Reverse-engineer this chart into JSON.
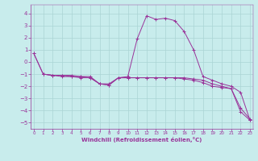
{
  "xlabel": "Windchill (Refroidissement éolien,°C)",
  "bg_color": "#c8ecec",
  "grid_color": "#aad4d4",
  "line_color": "#993399",
  "xlim": [
    -0.3,
    23.3
  ],
  "ylim": [
    -5.5,
    4.7
  ],
  "xticks": [
    0,
    1,
    2,
    3,
    4,
    5,
    6,
    7,
    8,
    9,
    10,
    11,
    12,
    13,
    14,
    15,
    16,
    17,
    18,
    19,
    20,
    21,
    22,
    23
  ],
  "yticks": [
    -5,
    -4,
    -3,
    -2,
    -1,
    0,
    1,
    2,
    3,
    4
  ],
  "lines": [
    {
      "x": [
        0,
        1,
        2,
        3,
        4,
        5,
        6,
        7,
        8,
        9,
        10,
        11,
        12,
        13,
        14,
        15,
        16,
        17,
        18,
        19,
        20,
        21,
        22,
        23
      ],
      "y": [
        0.7,
        -1.0,
        -1.1,
        -1.2,
        -1.2,
        -1.3,
        -1.3,
        -1.8,
        -1.8,
        -1.3,
        -1.3,
        -1.3,
        -1.3,
        -1.3,
        -1.3,
        -1.3,
        -1.3,
        -1.4,
        -1.5,
        -1.8,
        -2.0,
        -2.2,
        -3.8,
        -4.7
      ]
    },
    {
      "x": [
        0,
        1,
        2,
        3,
        4,
        5,
        6,
        7,
        8,
        9,
        10,
        11,
        12,
        13,
        14,
        15,
        16,
        17,
        18,
        19,
        20,
        21,
        22,
        23
      ],
      "y": [
        0.7,
        -1.0,
        -1.1,
        -1.1,
        -1.2,
        -1.2,
        -1.3,
        -1.8,
        -1.9,
        -1.3,
        -1.2,
        1.9,
        3.8,
        3.5,
        3.6,
        3.4,
        2.5,
        1.0,
        -1.2,
        -1.5,
        -1.8,
        -2.0,
        -2.5,
        -4.8
      ]
    },
    {
      "x": [
        1,
        2,
        3,
        4,
        5,
        6,
        7,
        8,
        9,
        10,
        11,
        12,
        13,
        14,
        15,
        16,
        17,
        18,
        19,
        20,
        21,
        22,
        23
      ],
      "y": [
        -1.0,
        -1.1,
        -1.1,
        -1.1,
        -1.2,
        -1.2,
        -1.8,
        -1.9,
        -1.3,
        -1.3,
        -1.3,
        -1.3,
        -1.3,
        -1.3,
        -1.3,
        -1.4,
        -1.5,
        -1.7,
        -2.0,
        -2.1,
        -2.2,
        -4.1,
        -4.8
      ]
    }
  ]
}
